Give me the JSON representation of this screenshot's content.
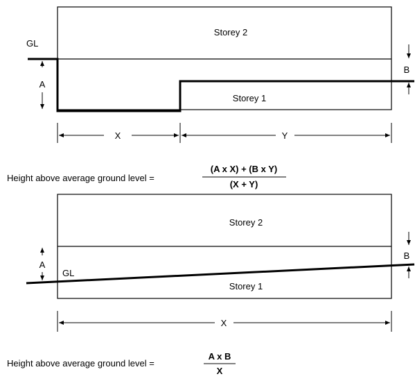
{
  "top_diagram": {
    "storey_upper": "Storey 2",
    "storey_lower": "Storey 1",
    "ground_label": "GL",
    "dim_a": "A",
    "dim_b": "B",
    "dim_x": "X",
    "dim_y": "Y"
  },
  "formula_1": {
    "prefix": "Height above average ground level =",
    "numerator": "(A x X) + (B x Y)",
    "denominator": "(X + Y)"
  },
  "bottom_diagram": {
    "storey_upper": "Storey 2",
    "storey_lower": "Storey 1",
    "ground_label": "GL",
    "dim_a": "A",
    "dim_b": "B",
    "dim_x": "X"
  },
  "formula_2": {
    "prefix": "Height above average ground level =",
    "numerator": "A x B",
    "denominator": "X"
  }
}
